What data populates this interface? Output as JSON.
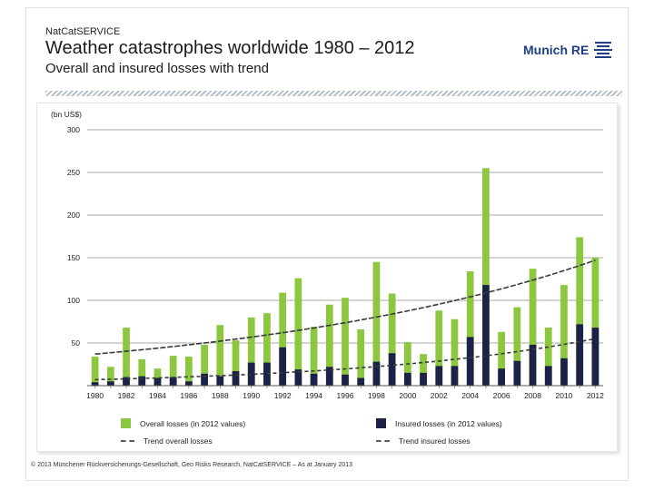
{
  "header": {
    "service": "NatCatSERVICE",
    "title": "Weather catastrophes worldwide 1980 – 2012",
    "subtitle": "Overall and insured losses with trend",
    "logo_text": "Munich RE"
  },
  "colors": {
    "overall": "#8dc63f",
    "insured": "#1c2147",
    "trend_overall": "#3a3a3a",
    "trend_insured": "#3a3a3a",
    "grid": "#8c8c8c"
  },
  "chart_data": {
    "type": "bar",
    "unit_label": "(bn US$)",
    "ylim": [
      0,
      300
    ],
    "yticks": [
      50,
      100,
      150,
      200,
      250,
      300
    ],
    "years": [
      1980,
      1981,
      1982,
      1983,
      1984,
      1985,
      1986,
      1987,
      1988,
      1989,
      1990,
      1991,
      1992,
      1993,
      1994,
      1995,
      1996,
      1997,
      1998,
      1999,
      2000,
      2001,
      2002,
      2003,
      2004,
      2005,
      2006,
      2007,
      2008,
      2009,
      2010,
      2011,
      2012
    ],
    "year_tick_labels": [
      "1980",
      "1982",
      "1984",
      "1986",
      "1988",
      "1990",
      "1992",
      "1994",
      "1996",
      "1998",
      "2000",
      "2002",
      "2004",
      "2006",
      "2008",
      "2010",
      "2012"
    ],
    "series": [
      {
        "name": "Overall losses (in 2012 values)",
        "values": [
          34,
          22,
          68,
          31,
          20,
          35,
          34,
          48,
          71,
          53,
          80,
          85,
          109,
          126,
          69,
          95,
          103,
          66,
          145,
          108,
          51,
          37,
          88,
          78,
          134,
          255,
          63,
          92,
          137,
          68,
          118,
          174,
          150
        ]
      },
      {
        "name": "Insured losses (in 2012 values)",
        "values": [
          4,
          5,
          10,
          11,
          9,
          10,
          5,
          14,
          11,
          17,
          27,
          27,
          45,
          19,
          14,
          22,
          13,
          9,
          28,
          38,
          15,
          15,
          23,
          23,
          57,
          118,
          20,
          29,
          48,
          23,
          32,
          72,
          68
        ]
      }
    ],
    "trends": [
      {
        "name": "Trend overall losses",
        "values_1980_2012": [
          37,
          147
        ]
      },
      {
        "name": "Trend insured losses",
        "values_1980_2012": [
          7,
          55
        ]
      }
    ],
    "legend": {
      "overall": "Overall losses (in 2012 values)",
      "insured": "Insured losses (in 2012 values)",
      "trend_overall": "Trend overall losses",
      "trend_insured": "Trend insured losses"
    }
  },
  "footer": {
    "text": "© 2013 Münchener Rückversicherungs-Gesellschaft, Geo Risks Research, NatCatSERVICE – As at January 2013"
  }
}
